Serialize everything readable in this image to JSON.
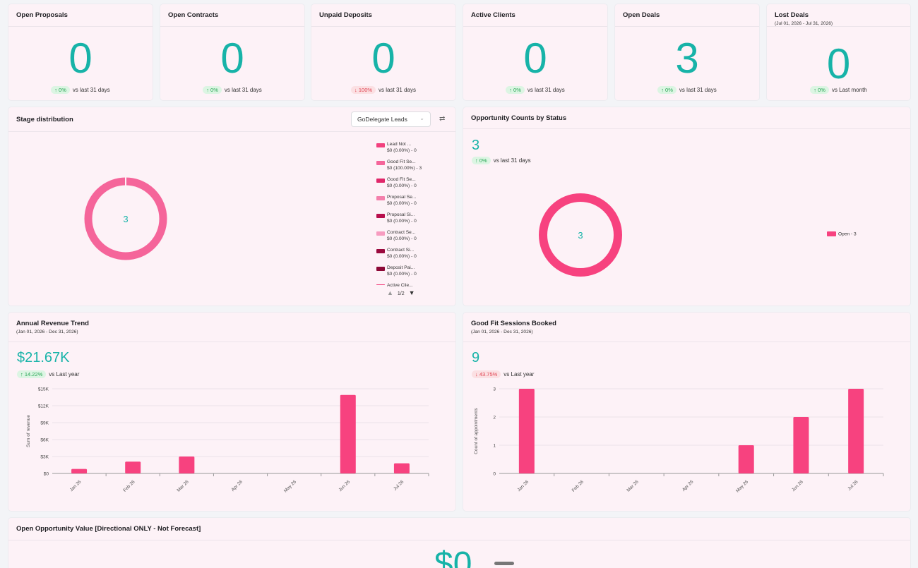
{
  "kpis": [
    {
      "title": "Open Proposals",
      "subtitle": "",
      "value": "0",
      "change": "0%",
      "direction": "up",
      "period": "vs last 31 days"
    },
    {
      "title": "Open Contracts",
      "subtitle": "",
      "value": "0",
      "change": "0%",
      "direction": "up",
      "period": "vs last 31 days"
    },
    {
      "title": "Unpaid Deposits",
      "subtitle": "",
      "value": "0",
      "change": "100%",
      "direction": "down",
      "period": "vs last 31 days"
    },
    {
      "title": "Active Clients",
      "subtitle": "",
      "value": "0",
      "change": "0%",
      "direction": "up",
      "period": "vs last 31 days"
    },
    {
      "title": "Open Deals",
      "subtitle": "",
      "value": "3",
      "change": "0%",
      "direction": "up",
      "period": "vs last 31 days"
    },
    {
      "title": "Lost Deals",
      "subtitle": "(Jul 01, 2026 - Jul 31, 2026)",
      "value": "0",
      "change": "0%",
      "direction": "up",
      "period": "vs Last month"
    }
  ],
  "stage_distribution": {
    "title": "Stage distribution",
    "dropdown_value": "GoDelegate Leads",
    "center_value": "3",
    "legend": [
      {
        "name": "Lead    Not ...",
        "detail": "$0 (0.00%) - 0",
        "color": "#f2417e"
      },
      {
        "name": "Good Fit Se...",
        "detail": "$0 (100.00%) - 3",
        "color": "#f5659a"
      },
      {
        "name": "Good Fit Se...",
        "detail": "$0 (0.00%) - 0",
        "color": "#e0276a"
      },
      {
        "name": "Proposal Se...",
        "detail": "$0 (0.00%) - 0",
        "color": "#f480ac"
      },
      {
        "name": "Proposal Si...",
        "detail": "$0 (0.00%) - 0",
        "color": "#b80f4d"
      },
      {
        "name": "Contract Se...",
        "detail": "$0 (0.00%) - 0",
        "color": "#f79cc0"
      },
      {
        "name": "Contract Si...",
        "detail": "$0 (0.00%) - 0",
        "color": "#9a0a3e"
      },
      {
        "name": "Deposit Pai...",
        "detail": "$0 (0.00%) - 0",
        "color": "#8c0836"
      },
      {
        "name": "Active Clie...",
        "detail": "",
        "color": "#f2417e"
      }
    ],
    "pager": "1/2"
  },
  "opportunity_counts": {
    "title": "Opportunity Counts by Status",
    "value": "3",
    "change": "0%",
    "period": "vs last 31 days",
    "center_value": "3",
    "legend_label": "Open - 3",
    "color": "#f7427f"
  },
  "annual_revenue": {
    "title": "Annual Revenue Trend",
    "subtitle": "(Jan 01, 2026 - Dec 31, 2026)",
    "value": "$21.67K",
    "change": "14.22%",
    "period": "vs Last year"
  },
  "good_fit_sessions": {
    "title": "Good Fit Sessions Booked",
    "subtitle": "(Jan 01, 2026 - Dec 31, 2026)",
    "value": "9",
    "change": "43.75%",
    "period": "vs Last year"
  },
  "open_opportunity": {
    "title": "Open Opportunity Value [Directional ONLY - Not Forecast]",
    "value": "$0"
  },
  "chart_data": [
    {
      "type": "bar",
      "ylabel": "Sum of revenue",
      "categories": [
        "Jan 26",
        "Feb 26",
        "Mar 26",
        "Apr 26",
        "May 26",
        "Jun 26",
        "Jul 26"
      ],
      "values": [
        800,
        2100,
        3000,
        0,
        0,
        13900,
        1800
      ],
      "yticks": [
        "$0",
        "$3K",
        "$6K",
        "$9K",
        "$12K",
        "$15K"
      ],
      "ylim": [
        0,
        15000
      ],
      "color": "#f7427f"
    },
    {
      "type": "bar",
      "ylabel": "Count of appointments",
      "categories": [
        "Jan 26",
        "Feb 26",
        "Mar 26",
        "Apr 26",
        "May 26",
        "Jun 26",
        "Jul 26"
      ],
      "values": [
        3,
        0,
        0,
        0,
        1,
        2,
        3
      ],
      "yticks": [
        "0",
        "1",
        "2",
        "3"
      ],
      "ylim": [
        0,
        3
      ],
      "color": "#f7427f"
    }
  ]
}
